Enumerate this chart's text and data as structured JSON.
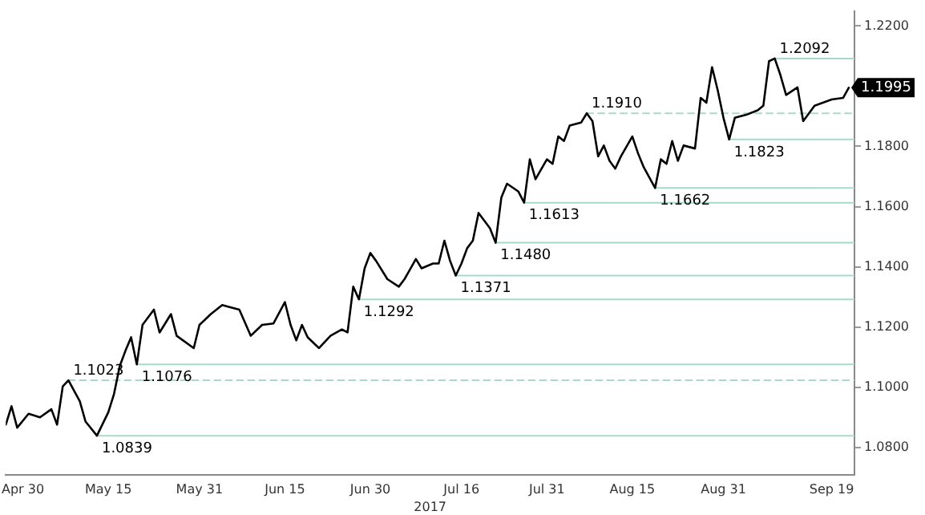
{
  "chart_data": {
    "type": "line",
    "xlabel": "2017",
    "xlim": [
      "2017-04-27",
      "2017-09-23"
    ],
    "xticks": [
      {
        "value": "2017-04-30",
        "label": "Apr 30"
      },
      {
        "value": "2017-05-15",
        "label": "May 15"
      },
      {
        "value": "2017-05-31",
        "label": "May 31"
      },
      {
        "value": "2017-06-15",
        "label": "Jun 15"
      },
      {
        "value": "2017-06-30",
        "label": "Jun 30"
      },
      {
        "value": "2017-07-16",
        "label": "Jul 16"
      },
      {
        "value": "2017-07-31",
        "label": "Jul 31"
      },
      {
        "value": "2017-08-15",
        "label": "Aug 15"
      },
      {
        "value": "2017-08-31",
        "label": "Aug 31"
      },
      {
        "value": "2017-09-19",
        "label": "Sep 19"
      }
    ],
    "ylim": [
      1.071,
      1.225
    ],
    "yticks": [
      {
        "value": 1.08,
        "label": "1.0800"
      },
      {
        "value": 1.1,
        "label": "1.1000"
      },
      {
        "value": 1.12,
        "label": "1.1200"
      },
      {
        "value": 1.14,
        "label": "1.1400"
      },
      {
        "value": 1.16,
        "label": "1.1600"
      },
      {
        "value": 1.18,
        "label": "1.1800"
      },
      {
        "value": 1.2,
        "label": null
      },
      {
        "value": 1.22,
        "label": "1.2200"
      }
    ],
    "grid": false,
    "legend": false,
    "marker": "none",
    "series": [
      {
        "color": "#000000",
        "line_style": "solid",
        "x": [
          "2017-04-27",
          "2017-04-28",
          "2017-04-29",
          "2017-05-01",
          "2017-05-03",
          "2017-05-05",
          "2017-05-06",
          "2017-05-07",
          "2017-05-08",
          "2017-05-10",
          "2017-05-11",
          "2017-05-13",
          "2017-05-15",
          "2017-05-16",
          "2017-05-17",
          "2017-05-18",
          "2017-05-19",
          "2017-05-20",
          "2017-05-21",
          "2017-05-23",
          "2017-05-24",
          "2017-05-26",
          "2017-05-27",
          "2017-05-30",
          "2017-05-31",
          "2017-06-02",
          "2017-06-04",
          "2017-06-05",
          "2017-06-07",
          "2017-06-09",
          "2017-06-11",
          "2017-06-13",
          "2017-06-15",
          "2017-06-16",
          "2017-06-17",
          "2017-06-18",
          "2017-06-19",
          "2017-06-21",
          "2017-06-23",
          "2017-06-25",
          "2017-06-26",
          "2017-06-27",
          "2017-06-28",
          "2017-06-29",
          "2017-06-30",
          "2017-07-01",
          "2017-07-03",
          "2017-07-05",
          "2017-07-06",
          "2017-07-08",
          "2017-07-09",
          "2017-07-11",
          "2017-07-12",
          "2017-07-13",
          "2017-07-14",
          "2017-07-15",
          "2017-07-16",
          "2017-07-17",
          "2017-07-18",
          "2017-07-19",
          "2017-07-21",
          "2017-07-22",
          "2017-07-23",
          "2017-07-24",
          "2017-07-26",
          "2017-07-27",
          "2017-07-28",
          "2017-07-29",
          "2017-07-31",
          "2017-08-01",
          "2017-08-02",
          "2017-08-03",
          "2017-08-04",
          "2017-08-06",
          "2017-08-07",
          "2017-08-08",
          "2017-08-09",
          "2017-08-10",
          "2017-08-11",
          "2017-08-12",
          "2017-08-13",
          "2017-08-15",
          "2017-08-16",
          "2017-08-17",
          "2017-08-19",
          "2017-08-20",
          "2017-08-21",
          "2017-08-22",
          "2017-08-23",
          "2017-08-24",
          "2017-08-26",
          "2017-08-27",
          "2017-08-28",
          "2017-08-29",
          "2017-08-30",
          "2017-08-31",
          "2017-09-01",
          "2017-09-02",
          "2017-09-04",
          "2017-09-06",
          "2017-09-07",
          "2017-09-08",
          "2017-09-09",
          "2017-09-10",
          "2017-09-11",
          "2017-09-13",
          "2017-09-14",
          "2017-09-16",
          "2017-09-19",
          "2017-09-21",
          "2017-09-22"
        ],
        "values": [
          1.0876,
          1.0937,
          1.0866,
          1.0912,
          1.09,
          1.0927,
          1.0876,
          1.1003,
          1.1023,
          1.0953,
          1.0886,
          1.0839,
          1.0917,
          1.0978,
          1.107,
          1.1121,
          1.1166,
          1.1076,
          1.1207,
          1.1258,
          1.1182,
          1.1243,
          1.1171,
          1.113,
          1.1207,
          1.1243,
          1.1273,
          1.1268,
          1.1258,
          1.1171,
          1.1207,
          1.1212,
          1.1283,
          1.1207,
          1.1156,
          1.1207,
          1.1166,
          1.113,
          1.1171,
          1.1192,
          1.1182,
          1.1334,
          1.1292,
          1.1395,
          1.1446,
          1.142,
          1.1359,
          1.1334,
          1.1359,
          1.1426,
          1.1395,
          1.1411,
          1.1411,
          1.1487,
          1.142,
          1.1371,
          1.1411,
          1.1462,
          1.1487,
          1.1579,
          1.1528,
          1.148,
          1.163,
          1.1676,
          1.165,
          1.1613,
          1.1757,
          1.1691,
          1.1757,
          1.1742,
          1.1833,
          1.1818,
          1.1869,
          1.1879,
          1.191,
          1.1884,
          1.1767,
          1.1803,
          1.1752,
          1.1726,
          1.1767,
          1.1833,
          1.1777,
          1.1731,
          1.1662,
          1.1757,
          1.1742,
          1.1818,
          1.1752,
          1.1803,
          1.1793,
          1.1961,
          1.1945,
          1.2063,
          1.1986,
          1.1895,
          1.1823,
          1.1895,
          1.1905,
          1.192,
          1.1935,
          1.2083,
          1.2092,
          1.2037,
          1.1971,
          1.1996,
          1.1884,
          1.1935,
          1.1956,
          1.1961,
          1.1995
        ]
      },
      {
        "color": "#a6dcc6",
        "line_style": "dashed",
        "x": [
          "2017-05-08",
          "2017-09-23"
        ],
        "values": [
          1.1023,
          1.1023
        ]
      },
      {
        "color": "#a6dcc6",
        "line_style": "solid",
        "x": [
          "2017-05-13",
          "2017-09-23"
        ],
        "values": [
          1.0839,
          1.0839
        ]
      },
      {
        "color": "#a6dcc6",
        "line_style": "solid",
        "x": [
          "2017-05-20",
          "2017-09-23"
        ],
        "values": [
          1.1076,
          1.1076
        ]
      },
      {
        "color": "#a6dcc6",
        "line_style": "solid",
        "x": [
          "2017-06-28",
          "2017-09-23"
        ],
        "values": [
          1.1292,
          1.1292
        ]
      },
      {
        "color": "#a6dcc6",
        "line_style": "solid",
        "x": [
          "2017-07-15",
          "2017-09-23"
        ],
        "values": [
          1.1371,
          1.1371
        ]
      },
      {
        "color": "#a6dcc6",
        "line_style": "solid",
        "x": [
          "2017-07-22",
          "2017-09-23"
        ],
        "values": [
          1.148,
          1.148
        ]
      },
      {
        "color": "#a6dcc6",
        "line_style": "solid",
        "x": [
          "2017-07-27",
          "2017-09-23"
        ],
        "values": [
          1.1613,
          1.1613
        ]
      },
      {
        "color": "#a6dcc6",
        "line_style": "dashed",
        "x": [
          "2017-08-07",
          "2017-09-23"
        ],
        "values": [
          1.191,
          1.191
        ]
      },
      {
        "color": "#a6dcc6",
        "line_style": "solid",
        "x": [
          "2017-08-19",
          "2017-09-23"
        ],
        "values": [
          1.1662,
          1.1662
        ]
      },
      {
        "color": "#a6dcc6",
        "line_style": "solid",
        "x": [
          "2017-09-01",
          "2017-09-23"
        ],
        "values": [
          1.1823,
          1.1823
        ]
      },
      {
        "color": "#a6dcc6",
        "line_style": "solid",
        "x": [
          "2017-09-09",
          "2017-09-23"
        ],
        "values": [
          1.2092,
          1.2092
        ]
      }
    ],
    "annotations": [
      {
        "text": "1.1023",
        "x": "2017-05-08",
        "y": 1.1023
      },
      {
        "text": "1.0839",
        "x": "2017-05-13",
        "y": 1.0839
      },
      {
        "text": "1.1076",
        "x": "2017-05-20",
        "y": 1.1076
      },
      {
        "text": "1.1292",
        "x": "2017-06-28",
        "y": 1.1292
      },
      {
        "text": "1.1371",
        "x": "2017-07-15",
        "y": 1.1371
      },
      {
        "text": "1.1480",
        "x": "2017-07-22",
        "y": 1.148
      },
      {
        "text": "1.1613",
        "x": "2017-07-27",
        "y": 1.1613
      },
      {
        "text": "1.1910",
        "x": "2017-08-07",
        "y": 1.191
      },
      {
        "text": "1.1662",
        "x": "2017-08-19",
        "y": 1.1662
      },
      {
        "text": "1.1823",
        "x": "2017-09-01",
        "y": 1.1823
      },
      {
        "text": "1.2092",
        "x": "2017-09-09",
        "y": 1.2092
      },
      {
        "text": "1.1995",
        "x": "2017-09-22",
        "y": 1.1995
      }
    ]
  }
}
